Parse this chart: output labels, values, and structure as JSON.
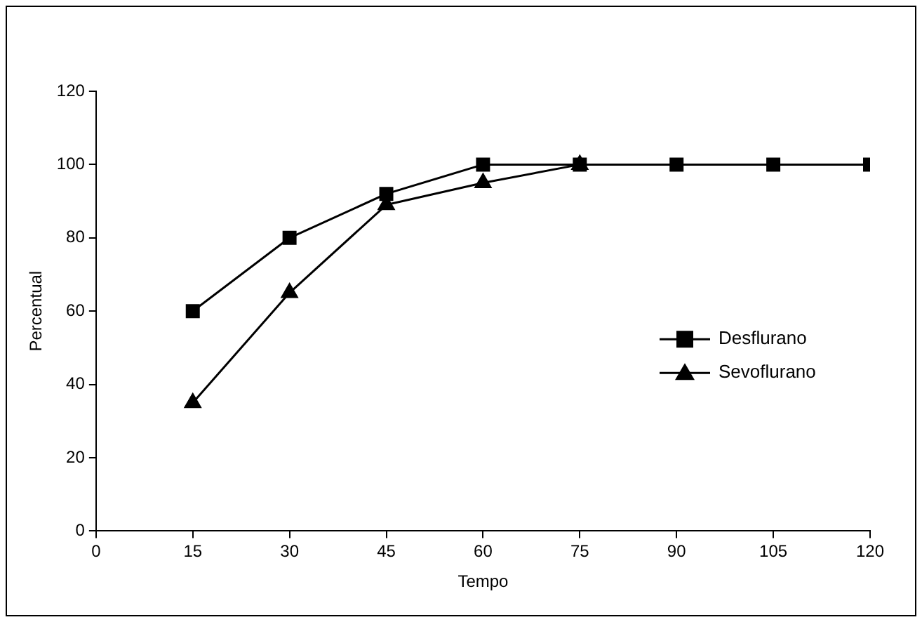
{
  "chart_data": {
    "type": "line",
    "xlabel": "Tempo",
    "ylabel": "Percentual",
    "x": [
      15,
      30,
      45,
      60,
      75,
      90,
      105,
      120
    ],
    "series": [
      {
        "name": "Desflurano",
        "color": "#000000",
        "marker": "square",
        "values": [
          60,
          80,
          92,
          100,
          100,
          100,
          100,
          100
        ]
      },
      {
        "name": "Sevoflurano",
        "color": "#000000",
        "marker": "triangle",
        "values": [
          35,
          65,
          89,
          95,
          100,
          null,
          null,
          null
        ]
      }
    ],
    "xlim": [
      0,
      120
    ],
    "xticks": [
      0,
      15,
      30,
      45,
      60,
      75,
      90,
      105,
      120
    ],
    "ylim": [
      0,
      120
    ],
    "yticks": [
      0,
      20,
      40,
      60,
      80,
      100,
      120
    ],
    "grid": false,
    "legend": "right",
    "line_style": "solid"
  }
}
